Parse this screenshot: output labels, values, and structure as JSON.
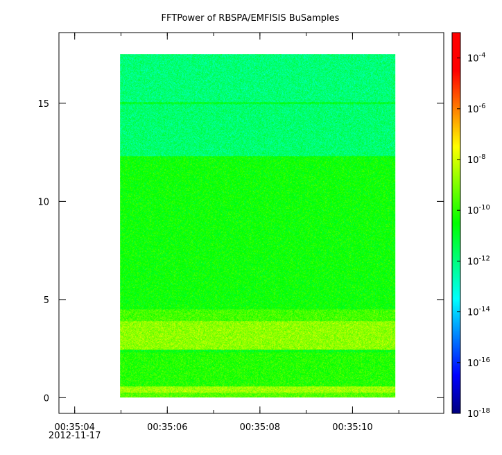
{
  "chart_data": {
    "type": "heatmap",
    "title": "FFTPower of RBSPA/EMFISIS  BuSamples",
    "xlabel": "",
    "ylabel": "",
    "x_axis": {
      "ticks": [
        {
          "time": "00:35:04",
          "sublabel": "2012-11-17"
        },
        {
          "time": "00:35:06",
          "sublabel": ""
        },
        {
          "time": "00:35:08",
          "sublabel": ""
        },
        {
          "time": "00:35:10",
          "sublabel": ""
        }
      ],
      "range": [
        "00:35:03.66",
        "00:35:11.97"
      ],
      "data_range": [
        "00:35:04.98",
        "00:35:10.93"
      ],
      "minor_tick_step_s": 1
    },
    "y_axis": {
      "ticks": [
        0,
        5,
        10,
        15
      ],
      "range": [
        -0.8,
        18.6
      ],
      "data_range": [
        0,
        17.5
      ],
      "minor_ticks": false
    },
    "colorbar": {
      "scale": "log",
      "range": [
        1e-18,
        0.001
      ],
      "ticks": [
        {
          "base": "10",
          "exp": "-4",
          "value": 0.0001
        },
        {
          "base": "10",
          "exp": "-6",
          "value": 1e-06
        },
        {
          "base": "10",
          "exp": "-8",
          "value": 1e-08
        },
        {
          "base": "10",
          "exp": "-10",
          "value": 1e-10
        },
        {
          "base": "10",
          "exp": "-12",
          "value": 1e-12
        },
        {
          "base": "10",
          "exp": "-14",
          "value": 1e-14
        },
        {
          "base": "10",
          "exp": "-16",
          "value": 1e-16
        },
        {
          "base": "10",
          "exp": "-18",
          "value": 1e-18
        }
      ],
      "colormap": [
        "#00007f",
        "#0000ff",
        "#007fff",
        "#00ffff",
        "#00ff7f",
        "#00ff00",
        "#7fff00",
        "#ffff00",
        "#ff7f00",
        "#ff0000",
        "#ff0000"
      ]
    },
    "bands": [
      {
        "y_range": [
          0.0,
          0.25
        ],
        "log_power": -9.5
      },
      {
        "y_range": [
          0.25,
          0.55
        ],
        "log_power": -8.6
      },
      {
        "y_range": [
          0.55,
          2.3
        ],
        "log_power": -10.1
      },
      {
        "y_range": [
          2.3,
          2.45
        ],
        "log_power": -10.7
      },
      {
        "y_range": [
          2.45,
          3.9
        ],
        "log_power": -8.8
      },
      {
        "y_range": [
          3.9,
          4.5
        ],
        "log_power": -9.7
      },
      {
        "y_range": [
          4.5,
          12.3
        ],
        "log_power": -10.4
      },
      {
        "y_range": [
          12.3,
          14.95
        ],
        "log_power": -11.8
      },
      {
        "y_range": [
          14.95,
          15.05
        ],
        "log_power": -10.9
      },
      {
        "y_range": [
          15.05,
          17.5
        ],
        "log_power": -11.9
      }
    ]
  }
}
